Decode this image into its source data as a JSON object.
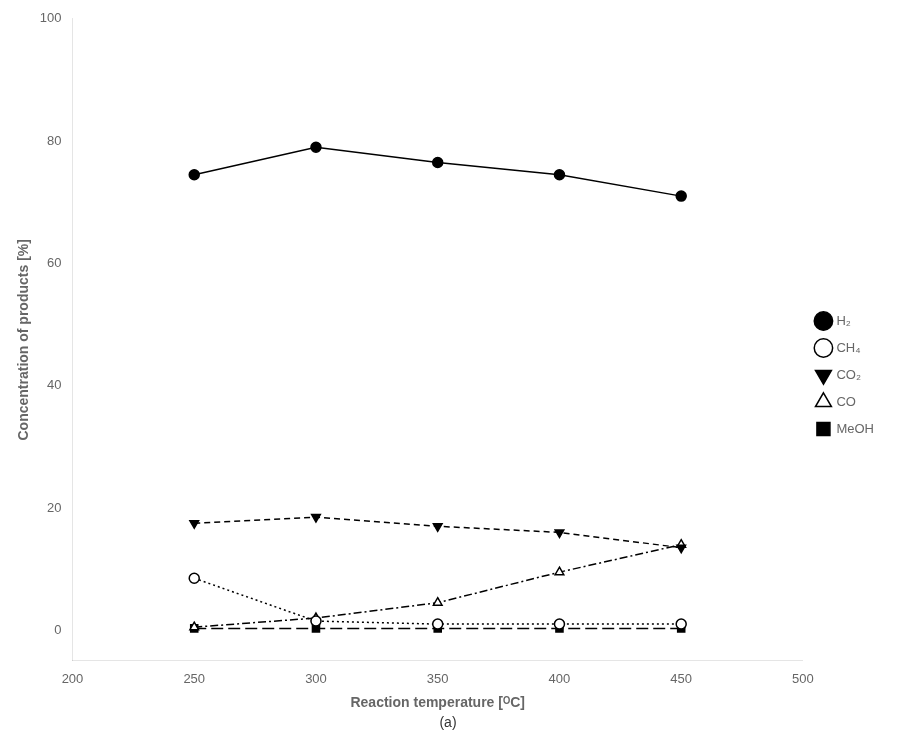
{
  "chart_data": {
    "type": "line",
    "xlabel": "Reaction temperature [ᴼC]",
    "ylabel": "Concentration of products [%]",
    "subtitle": "(a)",
    "x": [
      250,
      300,
      350,
      400,
      450
    ],
    "series": [
      {
        "name": "H₂",
        "color": "#000000",
        "marker": "circle",
        "line_style": "solid",
        "values": [
          74.5,
          79.0,
          76.5,
          74.5,
          71.0
        ]
      },
      {
        "name": "CH₄",
        "color": "#000000",
        "marker": "circle_open",
        "line_style": "dotted",
        "values": [
          8.5,
          1.5,
          1.0,
          1.0,
          1.0
        ]
      },
      {
        "name": "CO₂",
        "color": "#000000",
        "marker": "triangle_down",
        "line_style": "dashed",
        "values": [
          17.5,
          18.5,
          17.0,
          16.0,
          13.5
        ]
      },
      {
        "name": "CO",
        "color": "#000000",
        "marker": "triangle_up_open",
        "line_style": "dashdot",
        "values": [
          0.5,
          2.0,
          4.5,
          9.5,
          14.0
        ]
      },
      {
        "name": "MeOH",
        "color": "#000000",
        "marker": "square",
        "line_style": "longdash",
        "values": [
          0.3,
          0.3,
          0.3,
          0.3,
          0.3
        ]
      }
    ],
    "xlim": [
      200,
      500
    ],
    "ylim": [
      -5,
      100
    ],
    "xticks": [
      200,
      250,
      300,
      350,
      400,
      450,
      500
    ],
    "yticks": [
      0,
      20,
      40,
      60,
      80,
      100
    ],
    "grid": false,
    "legend": "right"
  }
}
